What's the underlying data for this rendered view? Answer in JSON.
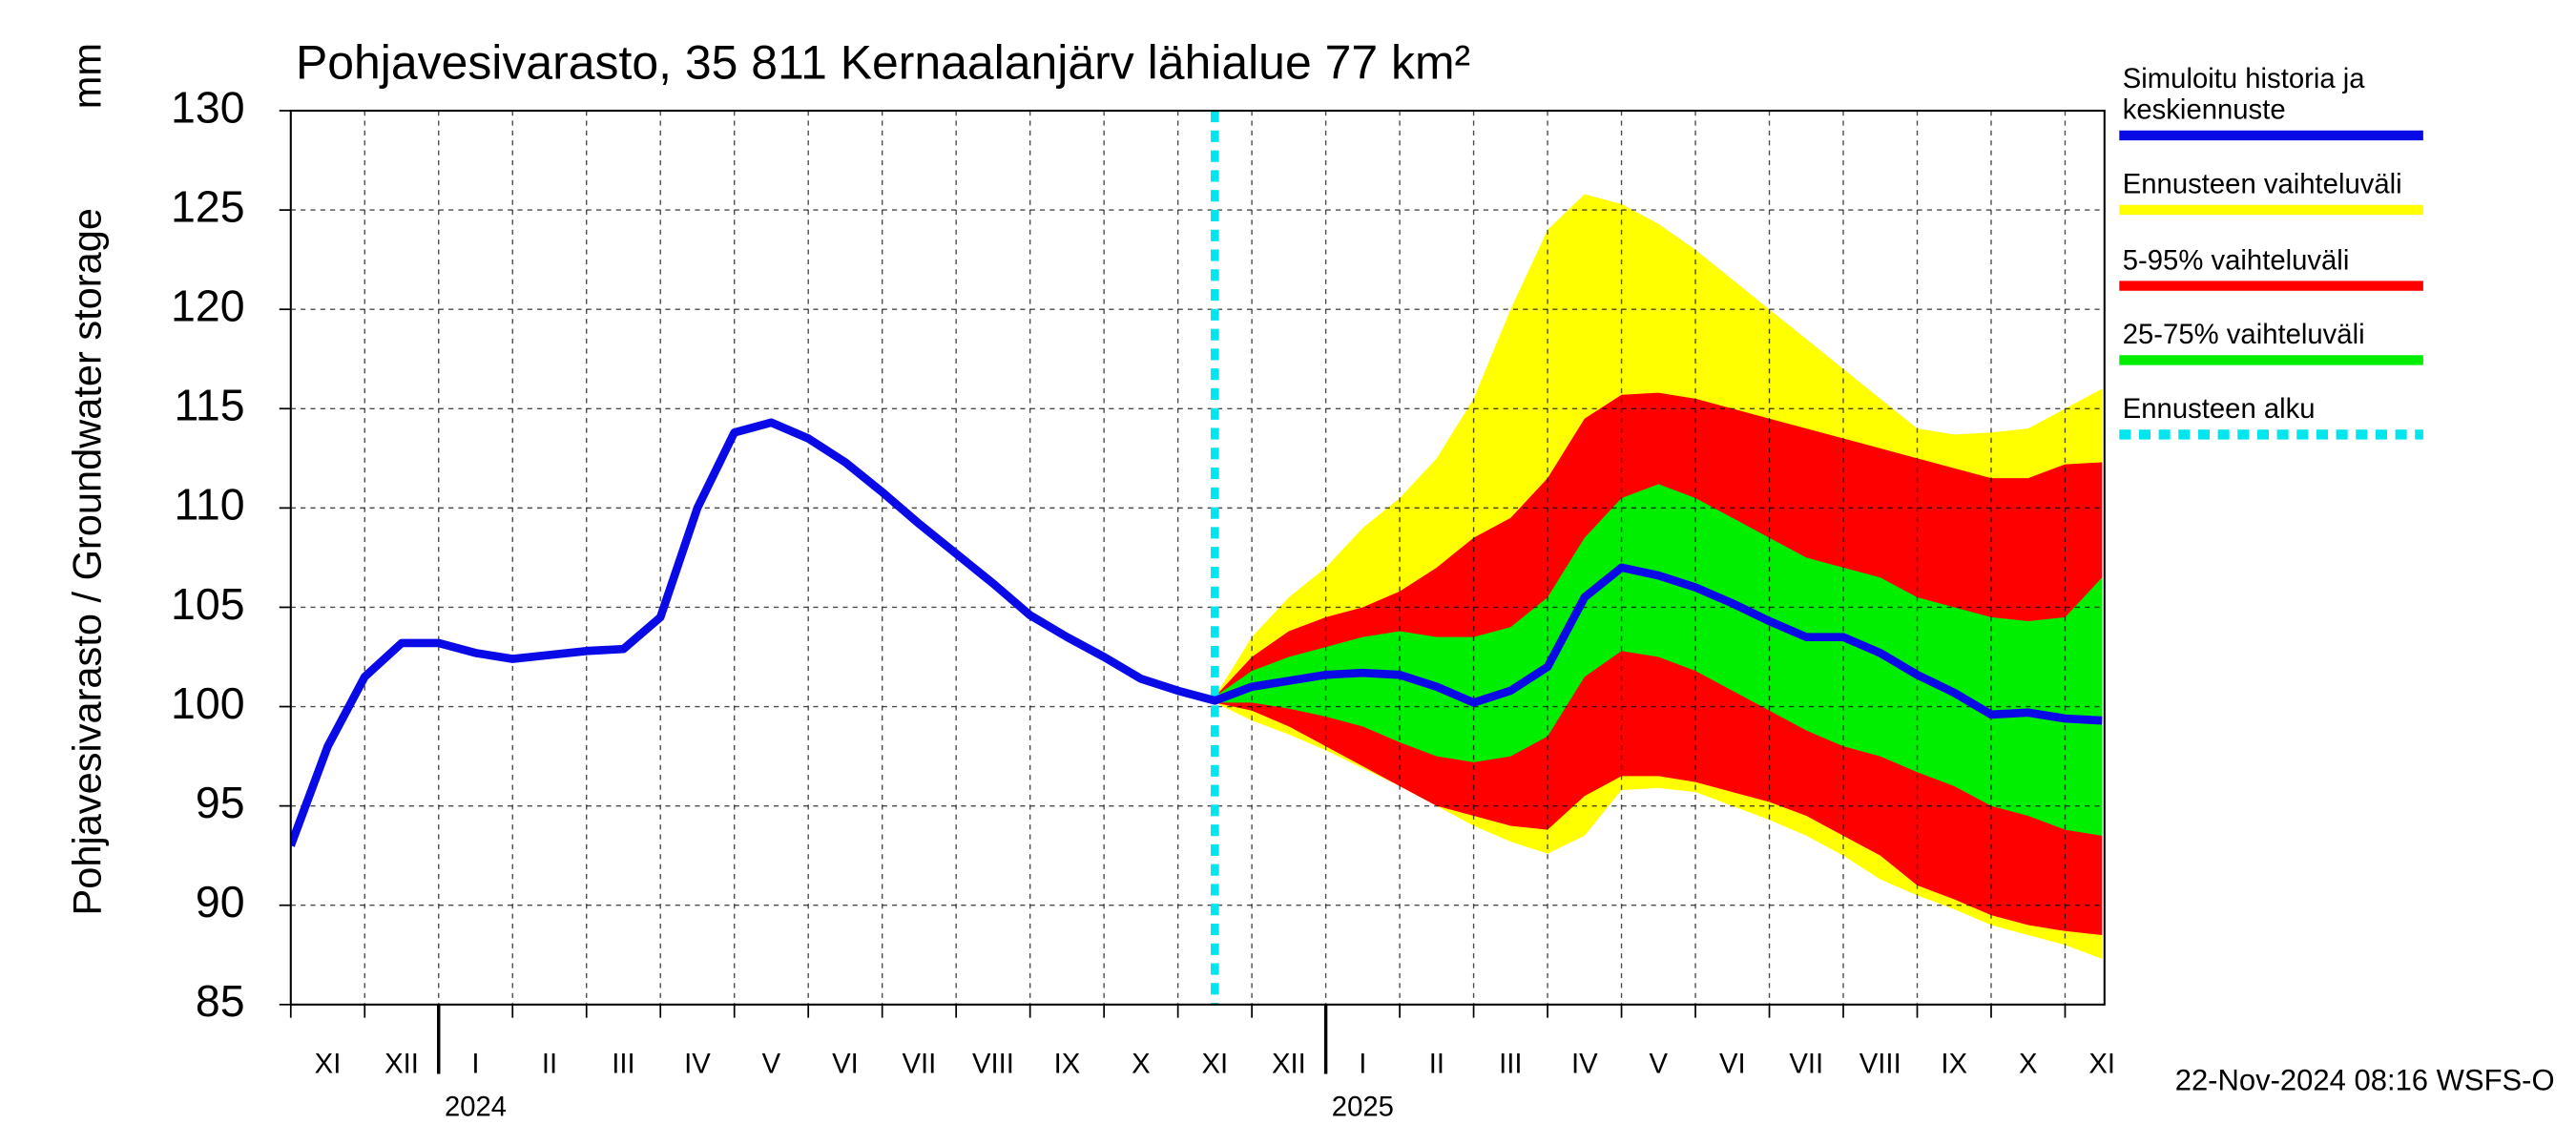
{
  "chart_data": {
    "type": "line",
    "title": "Pohjavesivarasto, 35 811 Kernaalanjärv lähialue 77 km²",
    "y_label": "Pohjavesivarasto / Groundwater storage",
    "y_unit": "mm",
    "footer": "22-Nov-2024 08:16 WSFS-O",
    "categories": [
      null,
      "XI",
      null,
      "XII",
      null,
      "I",
      null,
      "II",
      null,
      "III",
      null,
      "IV",
      null,
      "V",
      null,
      "VI",
      null,
      "VII",
      null,
      "VIII",
      null,
      "IX",
      null,
      "X",
      null,
      "XI",
      null,
      "XII",
      null,
      "I",
      null,
      "II",
      null,
      "III",
      null,
      "IV",
      null,
      "V",
      null,
      "VI",
      null,
      "VII",
      null,
      "VIII",
      null,
      "IX",
      null,
      "X",
      null,
      "XI"
    ],
    "year_labels": [
      "2024",
      "2025"
    ],
    "ylim": [
      85,
      130
    ],
    "yticks": [
      85,
      90,
      95,
      100,
      105,
      110,
      115,
      120,
      125,
      130
    ],
    "grid": true,
    "legend": "right",
    "series": [
      {
        "name": "Simuloitu historia ja keskiennuste",
        "color": "#0a0ae6",
        "values": [
          93,
          98,
          101.5,
          103.2,
          103.2,
          102.7,
          102.4,
          102.6,
          102.8,
          102.9,
          104.5,
          110,
          113.8,
          114.3,
          113.5,
          112.3,
          110.8,
          109.2,
          107.7,
          106.2,
          104.6,
          103.5,
          102.5,
          101.4,
          100.8,
          100.3,
          101.0,
          101.3,
          101.6,
          101.7,
          101.6,
          101.0,
          100.2,
          100.8,
          102.0,
          105.5,
          107.0,
          106.6,
          106.0,
          105.2,
          104.3,
          103.5,
          103.5,
          102.7,
          101.6,
          100.7,
          99.6,
          99.7,
          99.4,
          99.3
        ]
      },
      {
        "name": "Ennusteen vaihteluväli",
        "color": "#ffff00",
        "lower": [
          null,
          null,
          null,
          null,
          null,
          null,
          null,
          null,
          null,
          null,
          null,
          null,
          null,
          null,
          null,
          null,
          null,
          null,
          null,
          null,
          null,
          null,
          null,
          null,
          null,
          100.2,
          99.3,
          98.6,
          97.8,
          96.9,
          96,
          95,
          94,
          93.2,
          92.6,
          93.5,
          95.8,
          95.9,
          95.7,
          95,
          94.3,
          93.5,
          92.5,
          91.3,
          90.5,
          89.8,
          89,
          88.5,
          88,
          87.3
        ],
        "upper": [
          null,
          null,
          null,
          null,
          null,
          null,
          null,
          null,
          null,
          null,
          null,
          null,
          null,
          null,
          null,
          null,
          null,
          null,
          null,
          null,
          null,
          null,
          null,
          null,
          null,
          100.5,
          103.5,
          105.5,
          107,
          109,
          110.5,
          112.5,
          115.5,
          120,
          124,
          125.8,
          125.3,
          124.3,
          123,
          121.5,
          120,
          118.5,
          117,
          115.5,
          114,
          113.7,
          113.8,
          114,
          115,
          116
        ]
      },
      {
        "name": "5-95% vaihteluväli",
        "color": "#ff0000",
        "lower": [
          null,
          null,
          null,
          null,
          null,
          null,
          null,
          null,
          null,
          null,
          null,
          null,
          null,
          null,
          null,
          null,
          null,
          null,
          null,
          null,
          null,
          null,
          null,
          null,
          null,
          100.2,
          99.8,
          99,
          98,
          97,
          96,
          95,
          94.5,
          94,
          93.8,
          95.5,
          96.5,
          96.5,
          96.2,
          95.7,
          95.2,
          94.5,
          93.5,
          92.5,
          91,
          90.3,
          89.5,
          89,
          88.7,
          88.5
        ],
        "upper": [
          null,
          null,
          null,
          null,
          null,
          null,
          null,
          null,
          null,
          null,
          null,
          null,
          null,
          null,
          null,
          null,
          null,
          null,
          null,
          null,
          null,
          null,
          null,
          null,
          null,
          100.5,
          102.5,
          103.8,
          104.5,
          105,
          105.8,
          107,
          108.5,
          109.5,
          111.5,
          114.5,
          115.7,
          115.8,
          115.5,
          115,
          114.5,
          114,
          113.5,
          113,
          112.5,
          112,
          111.5,
          111.5,
          112.2,
          112.3
        ]
      },
      {
        "name": "25-75% vaihteluväli",
        "color": "#00ee00",
        "lower": [
          null,
          null,
          null,
          null,
          null,
          null,
          null,
          null,
          null,
          null,
          null,
          null,
          null,
          null,
          null,
          null,
          null,
          null,
          null,
          null,
          null,
          null,
          null,
          null,
          null,
          100.2,
          100.2,
          99.9,
          99.5,
          99,
          98.2,
          97.5,
          97.2,
          97.5,
          98.5,
          101.5,
          102.8,
          102.5,
          101.8,
          100.8,
          99.8,
          98.8,
          98,
          97.5,
          96.7,
          96,
          95,
          94.5,
          93.8,
          93.5
        ],
        "upper": [
          null,
          null,
          null,
          null,
          null,
          null,
          null,
          null,
          null,
          null,
          null,
          null,
          null,
          null,
          null,
          null,
          null,
          null,
          null,
          null,
          null,
          null,
          null,
          null,
          null,
          100.5,
          101.8,
          102.5,
          103,
          103.5,
          103.8,
          103.5,
          103.5,
          104,
          105.5,
          108.5,
          110.5,
          111.2,
          110.5,
          109.5,
          108.5,
          107.5,
          107,
          106.5,
          105.5,
          105,
          104.5,
          104.3,
          104.5,
          106.5
        ]
      },
      {
        "name": "Ennusteen alku",
        "color": "#00e5ee",
        "style": "dashed"
      }
    ]
  }
}
